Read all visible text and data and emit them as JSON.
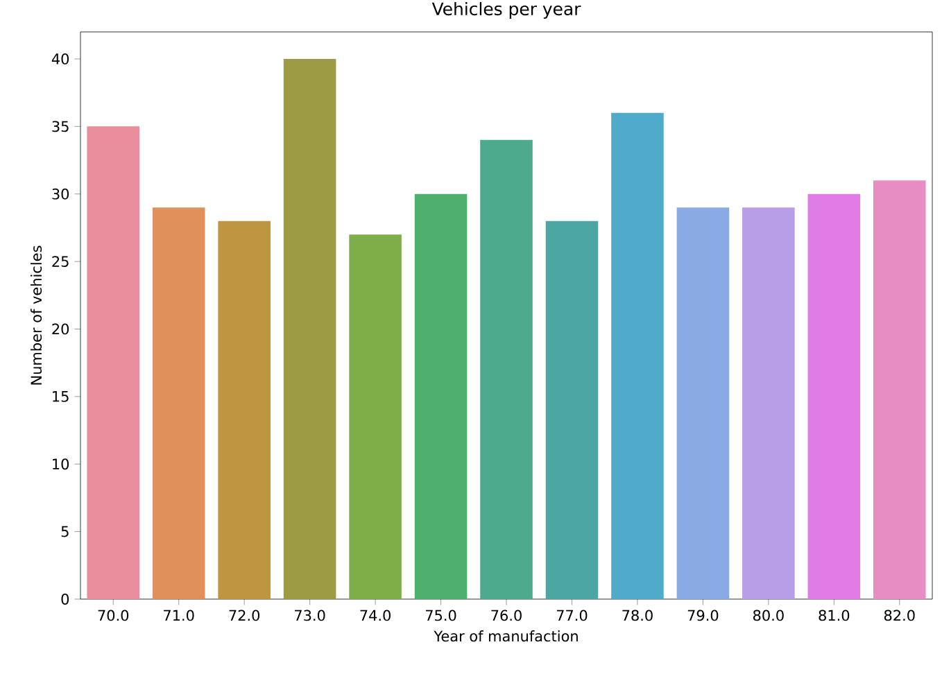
{
  "chart_data": {
    "type": "bar",
    "title": "Vehicles per year",
    "xlabel": "Year of manufaction",
    "ylabel": "Number of vehicles",
    "categories": [
      "70.0",
      "71.0",
      "72.0",
      "73.0",
      "74.0",
      "75.0",
      "76.0",
      "77.0",
      "78.0",
      "79.0",
      "80.0",
      "81.0",
      "82.0"
    ],
    "values": [
      35,
      29,
      28,
      40,
      27,
      30,
      34,
      28,
      36,
      29,
      29,
      30,
      31
    ],
    "colors": [
      "#e98d9c",
      "#e0905a",
      "#c0953f",
      "#9e9b45",
      "#7fad4a",
      "#4fb06d",
      "#4daa8f",
      "#4ca7a3",
      "#4fabc9",
      "#8aaae6",
      "#b89ee6",
      "#e07be6",
      "#e88dc3"
    ],
    "ylim": [
      0,
      42
    ],
    "yticks": [
      0,
      5,
      10,
      15,
      20,
      25,
      30,
      35,
      40
    ],
    "grid": false
  }
}
